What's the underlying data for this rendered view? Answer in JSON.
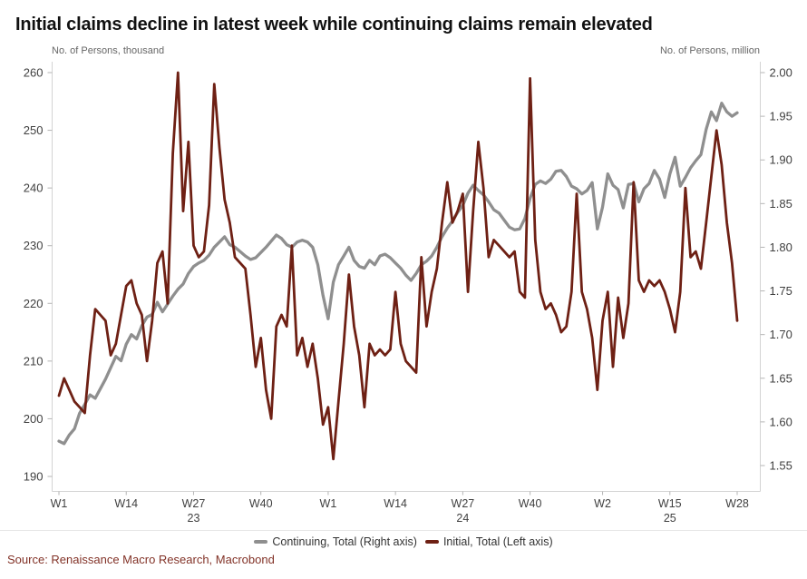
{
  "header": {
    "title": "Initial claims decline in latest week while continuing claims remain elevated"
  },
  "footer": {
    "source": "Source: Renaissance Macro Research, Macrobond"
  },
  "colors": {
    "continuing_line": "#8f8f8f",
    "initial_line": "#6e2014",
    "axis_line": "#d4d4d4",
    "tick_text": "#404040",
    "source_text": "#823227"
  },
  "chart_data": {
    "type": "line",
    "title": "Initial claims decline in latest week while continuing claims remain elevated",
    "xlabel": "",
    "x_description": "Weekly observations from W1 2023 through W28 2025 (132 weeks)",
    "grid": false,
    "legend_position": "bottom",
    "left_axis": {
      "label": "No. of Persons, thousand",
      "min": 190,
      "max": 260,
      "ticks": [
        {
          "v": 260,
          "label": "260"
        },
        {
          "v": 250,
          "label": "250"
        },
        {
          "v": 240,
          "label": "240"
        },
        {
          "v": 230,
          "label": "230"
        },
        {
          "v": 220,
          "label": "220"
        },
        {
          "v": 210,
          "label": "210"
        },
        {
          "v": 200,
          "label": "200"
        },
        {
          "v": 190,
          "label": "190"
        }
      ]
    },
    "right_axis": {
      "label": "No. of Persons, million",
      "min": 1.55,
      "max": 2.0,
      "ticks": [
        {
          "v": 2.0,
          "label": "2.00"
        },
        {
          "v": 1.95,
          "label": "1.95"
        },
        {
          "v": 1.9,
          "label": "1.90"
        },
        {
          "v": 1.85,
          "label": "1.85"
        },
        {
          "v": 1.8,
          "label": "1.80"
        },
        {
          "v": 1.75,
          "label": "1.75"
        },
        {
          "v": 1.7,
          "label": "1.70"
        },
        {
          "v": 1.65,
          "label": "1.65"
        },
        {
          "v": 1.6,
          "label": "1.60"
        },
        {
          "v": 1.55,
          "label": "1.55"
        }
      ]
    },
    "x_axis": {
      "total_weeks": 132,
      "week_ticks": [
        {
          "week": 1,
          "label": "W1"
        },
        {
          "week": 14,
          "label": "W14"
        },
        {
          "week": 27,
          "label": "W27"
        },
        {
          "week": 40,
          "label": "W40"
        },
        {
          "week": 53,
          "label": "W1"
        },
        {
          "week": 66,
          "label": "W14"
        },
        {
          "week": 79,
          "label": "W27"
        },
        {
          "week": 92,
          "label": "W40"
        },
        {
          "week": 106,
          "label": "W2"
        },
        {
          "week": 119,
          "label": "W15"
        },
        {
          "week": 132,
          "label": "W28"
        }
      ],
      "year_labels": [
        {
          "week": 27,
          "label": "23"
        },
        {
          "week": 79,
          "label": "24"
        },
        {
          "week": 119,
          "label": "25"
        }
      ]
    },
    "series": [
      {
        "name": "Continuing, Total (Right axis)",
        "axis": "right",
        "color": "#8f8f8f",
        "width": 3.3,
        "unit": "million persons",
        "values": [
          1.578,
          1.575,
          1.585,
          1.592,
          1.61,
          1.62,
          1.631,
          1.627,
          1.638,
          1.649,
          1.662,
          1.675,
          1.67,
          1.689,
          1.7,
          1.695,
          1.71,
          1.72,
          1.723,
          1.737,
          1.726,
          1.735,
          1.744,
          1.752,
          1.758,
          1.77,
          1.778,
          1.782,
          1.785,
          1.791,
          1.8,
          1.806,
          1.812,
          1.803,
          1.8,
          1.795,
          1.79,
          1.786,
          1.788,
          1.794,
          1.8,
          1.807,
          1.814,
          1.81,
          1.803,
          1.8,
          1.806,
          1.808,
          1.806,
          1.8,
          1.78,
          1.745,
          1.718,
          1.76,
          1.78,
          1.79,
          1.8,
          1.785,
          1.778,
          1.776,
          1.785,
          1.78,
          1.79,
          1.792,
          1.788,
          1.782,
          1.776,
          1.768,
          1.762,
          1.77,
          1.78,
          1.784,
          1.79,
          1.8,
          1.812,
          1.822,
          1.83,
          1.84,
          1.848,
          1.862,
          1.871,
          1.865,
          1.86,
          1.852,
          1.843,
          1.839,
          1.831,
          1.823,
          1.82,
          1.821,
          1.833,
          1.856,
          1.872,
          1.876,
          1.873,
          1.878,
          1.887,
          1.888,
          1.881,
          1.87,
          1.867,
          1.861,
          1.865,
          1.874,
          1.821,
          1.846,
          1.884,
          1.871,
          1.866,
          1.845,
          1.872,
          1.873,
          1.852,
          1.867,
          1.873,
          1.888,
          1.878,
          1.857,
          1.884,
          1.903,
          1.87,
          1.88,
          1.891,
          1.899,
          1.906,
          1.935,
          1.955,
          1.945,
          1.965,
          1.955,
          1.95,
          1.954
        ]
      },
      {
        "name": "Initial, Total (Left axis)",
        "axis": "left",
        "color": "#6e2014",
        "width": 2.8,
        "unit": "thousand persons",
        "values": [
          204,
          207,
          205,
          203,
          202,
          201,
          211,
          219,
          218,
          217,
          211,
          213,
          218,
          223,
          224,
          220,
          218,
          210,
          217,
          227,
          229,
          220,
          246,
          260,
          236,
          248,
          230,
          228,
          229,
          237,
          258,
          247,
          238,
          234,
          228,
          227,
          226,
          218,
          209,
          214,
          205,
          200,
          216,
          218,
          216,
          230,
          211,
          214,
          209,
          213,
          207,
          199,
          202,
          193,
          203,
          213,
          225,
          216,
          211,
          202,
          213,
          211,
          212,
          211,
          212,
          222,
          213,
          210,
          209,
          208,
          228,
          216,
          222,
          226,
          234,
          241,
          234,
          236,
          239,
          222,
          236,
          248,
          240,
          228,
          231,
          230,
          229,
          228,
          229,
          222,
          221,
          259,
          231,
          222,
          219,
          220,
          218,
          215,
          216,
          222,
          239,
          222,
          219,
          214,
          205,
          217,
          222,
          209,
          221,
          214,
          220,
          241,
          224,
          222,
          224,
          223,
          224,
          222,
          219,
          215,
          222,
          240,
          228,
          229,
          226,
          234,
          242,
          250,
          244,
          234,
          227,
          217
        ]
      }
    ]
  }
}
